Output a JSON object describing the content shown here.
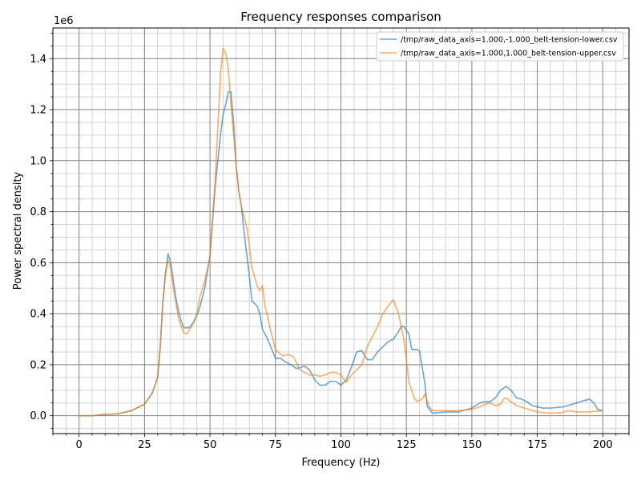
{
  "chart_data": {
    "type": "line",
    "title": "Frequency responses comparison",
    "xlabel": "Frequency (Hz)",
    "ylabel": "Power spectral density",
    "y_offset_label": "1e6",
    "y_multiplier": 1000000,
    "xlim": [
      -10,
      210
    ],
    "ylim": [
      -0.07,
      1.52
    ],
    "x_ticks": [
      0,
      25,
      50,
      75,
      100,
      125,
      150,
      175,
      200
    ],
    "x_tick_labels": [
      "0",
      "25",
      "50",
      "75",
      "100",
      "125",
      "150",
      "175",
      "200"
    ],
    "y_ticks": [
      0.0,
      0.2,
      0.4,
      0.6,
      0.8,
      1.0,
      1.2,
      1.4
    ],
    "y_tick_labels": [
      "0.0",
      "0.2",
      "0.4",
      "0.6",
      "0.8",
      "1.0",
      "1.2",
      "1.4"
    ],
    "grid": true,
    "minor_grid": true,
    "legend_position": "top-right",
    "series": [
      {
        "name": "/tmp/raw_data_axis=1.000,-1.000_belt-tension-lower.csv",
        "color": "#1f77b4",
        "points": [
          [
            0,
            0.0
          ],
          [
            5,
            0.0
          ],
          [
            10,
            0.005
          ],
          [
            15,
            0.008
          ],
          [
            20,
            0.02
          ],
          [
            25,
            0.045
          ],
          [
            28,
            0.09
          ],
          [
            30,
            0.15
          ],
          [
            31,
            0.27
          ],
          [
            32,
            0.45
          ],
          [
            33,
            0.56
          ],
          [
            34,
            0.635
          ],
          [
            35,
            0.6
          ],
          [
            36,
            0.53
          ],
          [
            37,
            0.46
          ],
          [
            38,
            0.41
          ],
          [
            39,
            0.37
          ],
          [
            40,
            0.345
          ],
          [
            42,
            0.345
          ],
          [
            44,
            0.37
          ],
          [
            46,
            0.42
          ],
          [
            48,
            0.5
          ],
          [
            50,
            0.63
          ],
          [
            52,
            0.9
          ],
          [
            54,
            1.1
          ],
          [
            55,
            1.18
          ],
          [
            56,
            1.22
          ],
          [
            57,
            1.27
          ],
          [
            58,
            1.27
          ],
          [
            59,
            1.15
          ],
          [
            60,
            0.98
          ],
          [
            61,
            0.88
          ],
          [
            62,
            0.82
          ],
          [
            63,
            0.72
          ],
          [
            65,
            0.55
          ],
          [
            66,
            0.45
          ],
          [
            68,
            0.43
          ],
          [
            69,
            0.4
          ],
          [
            70,
            0.34
          ],
          [
            72,
            0.3
          ],
          [
            74,
            0.25
          ],
          [
            75,
            0.225
          ],
          [
            77,
            0.225
          ],
          [
            79,
            0.21
          ],
          [
            81,
            0.2
          ],
          [
            83,
            0.185
          ],
          [
            85,
            0.19
          ],
          [
            86,
            0.195
          ],
          [
            88,
            0.18
          ],
          [
            90,
            0.14
          ],
          [
            92,
            0.12
          ],
          [
            94,
            0.12
          ],
          [
            96,
            0.135
          ],
          [
            98,
            0.135
          ],
          [
            100,
            0.12
          ],
          [
            102,
            0.14
          ],
          [
            104,
            0.19
          ],
          [
            106,
            0.25
          ],
          [
            108,
            0.255
          ],
          [
            110,
            0.22
          ],
          [
            112,
            0.22
          ],
          [
            114,
            0.25
          ],
          [
            116,
            0.27
          ],
          [
            118,
            0.29
          ],
          [
            120,
            0.3
          ],
          [
            122,
            0.33
          ],
          [
            123,
            0.35
          ],
          [
            124,
            0.35
          ],
          [
            126,
            0.32
          ],
          [
            127,
            0.26
          ],
          [
            129,
            0.26
          ],
          [
            130,
            0.255
          ],
          [
            132,
            0.13
          ],
          [
            133,
            0.035
          ],
          [
            135,
            0.01
          ],
          [
            140,
            0.015
          ],
          [
            145,
            0.015
          ],
          [
            150,
            0.03
          ],
          [
            153,
            0.05
          ],
          [
            155,
            0.055
          ],
          [
            157,
            0.055
          ],
          [
            159,
            0.07
          ],
          [
            161,
            0.1
          ],
          [
            163,
            0.115
          ],
          [
            165,
            0.1
          ],
          [
            167,
            0.07
          ],
          [
            169,
            0.065
          ],
          [
            171,
            0.055
          ],
          [
            173,
            0.04
          ],
          [
            177,
            0.03
          ],
          [
            180,
            0.03
          ],
          [
            185,
            0.035
          ],
          [
            190,
            0.05
          ],
          [
            193,
            0.06
          ],
          [
            195,
            0.065
          ],
          [
            197,
            0.045
          ],
          [
            198,
            0.025
          ],
          [
            200,
            0.02
          ]
        ]
      },
      {
        "name": "/tmp/raw_data_axis=1.000,1.000_belt-tension-upper.csv",
        "color": "#ff7f0e",
        "points": [
          [
            0,
            0.0
          ],
          [
            5,
            0.0
          ],
          [
            10,
            0.005
          ],
          [
            15,
            0.008
          ],
          [
            20,
            0.02
          ],
          [
            25,
            0.045
          ],
          [
            28,
            0.09
          ],
          [
            30,
            0.15
          ],
          [
            31,
            0.27
          ],
          [
            32,
            0.44
          ],
          [
            33,
            0.55
          ],
          [
            34,
            0.61
          ],
          [
            35,
            0.58
          ],
          [
            36,
            0.5
          ],
          [
            37,
            0.44
          ],
          [
            38,
            0.38
          ],
          [
            39,
            0.35
          ],
          [
            40,
            0.325
          ],
          [
            41,
            0.32
          ],
          [
            43,
            0.35
          ],
          [
            45,
            0.4
          ],
          [
            46,
            0.46
          ],
          [
            48,
            0.53
          ],
          [
            50,
            0.62
          ],
          [
            52,
            0.93
          ],
          [
            54,
            1.34
          ],
          [
            55,
            1.44
          ],
          [
            56,
            1.42
          ],
          [
            57,
            1.36
          ],
          [
            58,
            1.22
          ],
          [
            60,
            0.98
          ],
          [
            61,
            0.88
          ],
          [
            62,
            0.82
          ],
          [
            64,
            0.74
          ],
          [
            65,
            0.67
          ],
          [
            66,
            0.58
          ],
          [
            68,
            0.51
          ],
          [
            69,
            0.49
          ],
          [
            70,
            0.51
          ],
          [
            71,
            0.43
          ],
          [
            72,
            0.39
          ],
          [
            73,
            0.34
          ],
          [
            75,
            0.26
          ],
          [
            77,
            0.24
          ],
          [
            78,
            0.235
          ],
          [
            80,
            0.24
          ],
          [
            82,
            0.23
          ],
          [
            84,
            0.185
          ],
          [
            86,
            0.17
          ],
          [
            88,
            0.16
          ],
          [
            90,
            0.16
          ],
          [
            92,
            0.155
          ],
          [
            94,
            0.16
          ],
          [
            96,
            0.17
          ],
          [
            98,
            0.17
          ],
          [
            100,
            0.16
          ],
          [
            102,
            0.13
          ],
          [
            104,
            0.16
          ],
          [
            106,
            0.18
          ],
          [
            108,
            0.2
          ],
          [
            110,
            0.27
          ],
          [
            112,
            0.31
          ],
          [
            114,
            0.35
          ],
          [
            116,
            0.4
          ],
          [
            118,
            0.43
          ],
          [
            120,
            0.455
          ],
          [
            122,
            0.4
          ],
          [
            124,
            0.3
          ],
          [
            125,
            0.22
          ],
          [
            126,
            0.13
          ],
          [
            128,
            0.07
          ],
          [
            129,
            0.055
          ],
          [
            131,
            0.065
          ],
          [
            132,
            0.085
          ],
          [
            134,
            0.03
          ],
          [
            135,
            0.02
          ],
          [
            140,
            0.02
          ],
          [
            145,
            0.02
          ],
          [
            150,
            0.025
          ],
          [
            153,
            0.035
          ],
          [
            155,
            0.045
          ],
          [
            157,
            0.05
          ],
          [
            159,
            0.04
          ],
          [
            161,
            0.045
          ],
          [
            162,
            0.065
          ],
          [
            163,
            0.07
          ],
          [
            165,
            0.055
          ],
          [
            167,
            0.04
          ],
          [
            170,
            0.03
          ],
          [
            173,
            0.02
          ],
          [
            177,
            0.012
          ],
          [
            180,
            0.01
          ],
          [
            184,
            0.012
          ],
          [
            187,
            0.02
          ],
          [
            190,
            0.015
          ],
          [
            195,
            0.015
          ],
          [
            200,
            0.02
          ]
        ]
      }
    ]
  }
}
